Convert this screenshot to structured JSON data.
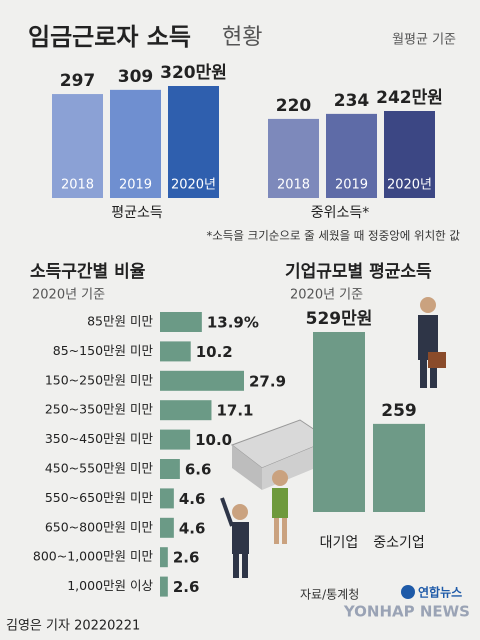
{
  "header": {
    "title_main": "임금근로자 소득",
    "title_light": "현황",
    "note": "월평균 기준"
  },
  "chart_data": [
    {
      "type": "bar",
      "orientation": "vertical",
      "x_label": "평균소득",
      "categories": [
        "2018",
        "2019",
        "2020년"
      ],
      "values": [
        297,
        309,
        320
      ],
      "value_labels": [
        "297",
        "309",
        "320만원"
      ],
      "colors": [
        "#8ba1d5",
        "#6f8fd0",
        "#2f5fae"
      ]
    },
    {
      "type": "bar",
      "orientation": "vertical",
      "x_label": "중위소득*",
      "categories": [
        "2018",
        "2019",
        "2020년"
      ],
      "values": [
        220,
        234,
        242
      ],
      "value_labels": [
        "220",
        "234",
        "242만원"
      ],
      "colors": [
        "#7d89bb",
        "#5e6ba7",
        "#3c4784"
      ]
    },
    {
      "type": "bar",
      "orientation": "horizontal",
      "title": "소득구간별 비율",
      "subtitle": "2020년 기준",
      "categories": [
        "85만원 미만",
        "85~150만원 미만",
        "150~250만원 미만",
        "250~350만원 미만",
        "350~450만원 미만",
        "450~550만원 미만",
        "550~650만원 미만",
        "650~800만원 미만",
        "800~1,000만원 미만",
        "1,000만원 이상"
      ],
      "values": [
        13.9,
        10.2,
        27.9,
        17.1,
        10.0,
        6.6,
        4.6,
        4.6,
        2.6,
        2.6
      ],
      "value_labels": [
        "13.9%",
        "10.2",
        "27.9",
        "17.1",
        "10.0",
        "6.6",
        "4.6",
        "4.6",
        "2.6",
        "2.6"
      ],
      "color": "#6b9a86"
    },
    {
      "type": "bar",
      "orientation": "vertical",
      "title": "기업규모별 평균소득",
      "subtitle": "2020년 기준",
      "categories": [
        "대기업",
        "중소기업"
      ],
      "values": [
        529,
        259
      ],
      "value_labels": [
        "529만원",
        "259"
      ],
      "colors": [
        "#6e9a87",
        "#6e9a87"
      ]
    }
  ],
  "footnote": "*소득을 크기순으로 줄 세웠을 때 정중앙에 위치한 값",
  "footer": {
    "source": "자료/통계청",
    "brand": "연합뉴스",
    "watermark": "YONHAP NEWS",
    "credit": "김영은 기자 20220221"
  }
}
